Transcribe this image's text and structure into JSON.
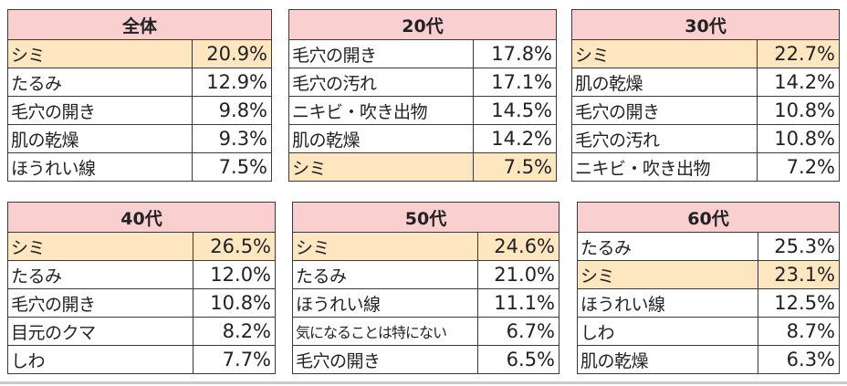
{
  "colors": {
    "header_bg": "#f9cfd0",
    "highlight_bg": "#fde6c0",
    "border": "#3a3a3a"
  },
  "tables": [
    {
      "title": "全体",
      "rows": [
        {
          "label": "シミ",
          "value": "20.9%",
          "highlight": true
        },
        {
          "label": "たるみ",
          "value": "12.9%",
          "highlight": false
        },
        {
          "label": "毛穴の開き",
          "value": "9.8%",
          "highlight": false
        },
        {
          "label": "肌の乾燥",
          "value": "9.3%",
          "highlight": false
        },
        {
          "label": "ほうれい線",
          "value": "7.5%",
          "highlight": false
        }
      ]
    },
    {
      "title": "20代",
      "rows": [
        {
          "label": "毛穴の開き",
          "value": "17.8%",
          "highlight": false
        },
        {
          "label": "毛穴の汚れ",
          "value": "17.1%",
          "highlight": false
        },
        {
          "label": "ニキビ・吹き出物",
          "value": "14.5%",
          "highlight": false
        },
        {
          "label": "肌の乾燥",
          "value": "14.2%",
          "highlight": false
        },
        {
          "label": "シミ",
          "value": "7.5%",
          "highlight": true
        }
      ]
    },
    {
      "title": "30代",
      "rows": [
        {
          "label": "シミ",
          "value": "22.7%",
          "highlight": true
        },
        {
          "label": "肌の乾燥",
          "value": "14.2%",
          "highlight": false
        },
        {
          "label": "毛穴の開き",
          "value": "10.8%",
          "highlight": false
        },
        {
          "label": "毛穴の汚れ",
          "value": "10.8%",
          "highlight": false
        },
        {
          "label": "ニキビ・吹き出物",
          "value": "7.2%",
          "highlight": false
        }
      ]
    },
    {
      "title": "40代",
      "rows": [
        {
          "label": "シミ",
          "value": "26.5%",
          "highlight": true
        },
        {
          "label": "たるみ",
          "value": "12.0%",
          "highlight": false
        },
        {
          "label": "毛穴の開き",
          "value": "10.8%",
          "highlight": false
        },
        {
          "label": "目元のクマ",
          "value": "8.2%",
          "highlight": false
        },
        {
          "label": "しわ",
          "value": "7.7%",
          "highlight": false
        }
      ]
    },
    {
      "title": "50代",
      "rows": [
        {
          "label": "シミ",
          "value": "24.6%",
          "highlight": true
        },
        {
          "label": "たるみ",
          "value": "21.0%",
          "highlight": false
        },
        {
          "label": "ほうれい線",
          "value": "11.1%",
          "highlight": false
        },
        {
          "label": "気になることは特にない",
          "value": "6.7%",
          "highlight": false
        },
        {
          "label": "毛穴の開き",
          "value": "6.5%",
          "highlight": false
        }
      ]
    },
    {
      "title": "60代",
      "rows": [
        {
          "label": "たるみ",
          "value": "25.3%",
          "highlight": false
        },
        {
          "label": "シミ",
          "value": "23.1%",
          "highlight": true
        },
        {
          "label": "ほうれい線",
          "value": "12.5%",
          "highlight": false
        },
        {
          "label": "しわ",
          "value": "8.7%",
          "highlight": false
        },
        {
          "label": "肌の乾燥",
          "value": "6.3%",
          "highlight": false
        }
      ]
    }
  ]
}
